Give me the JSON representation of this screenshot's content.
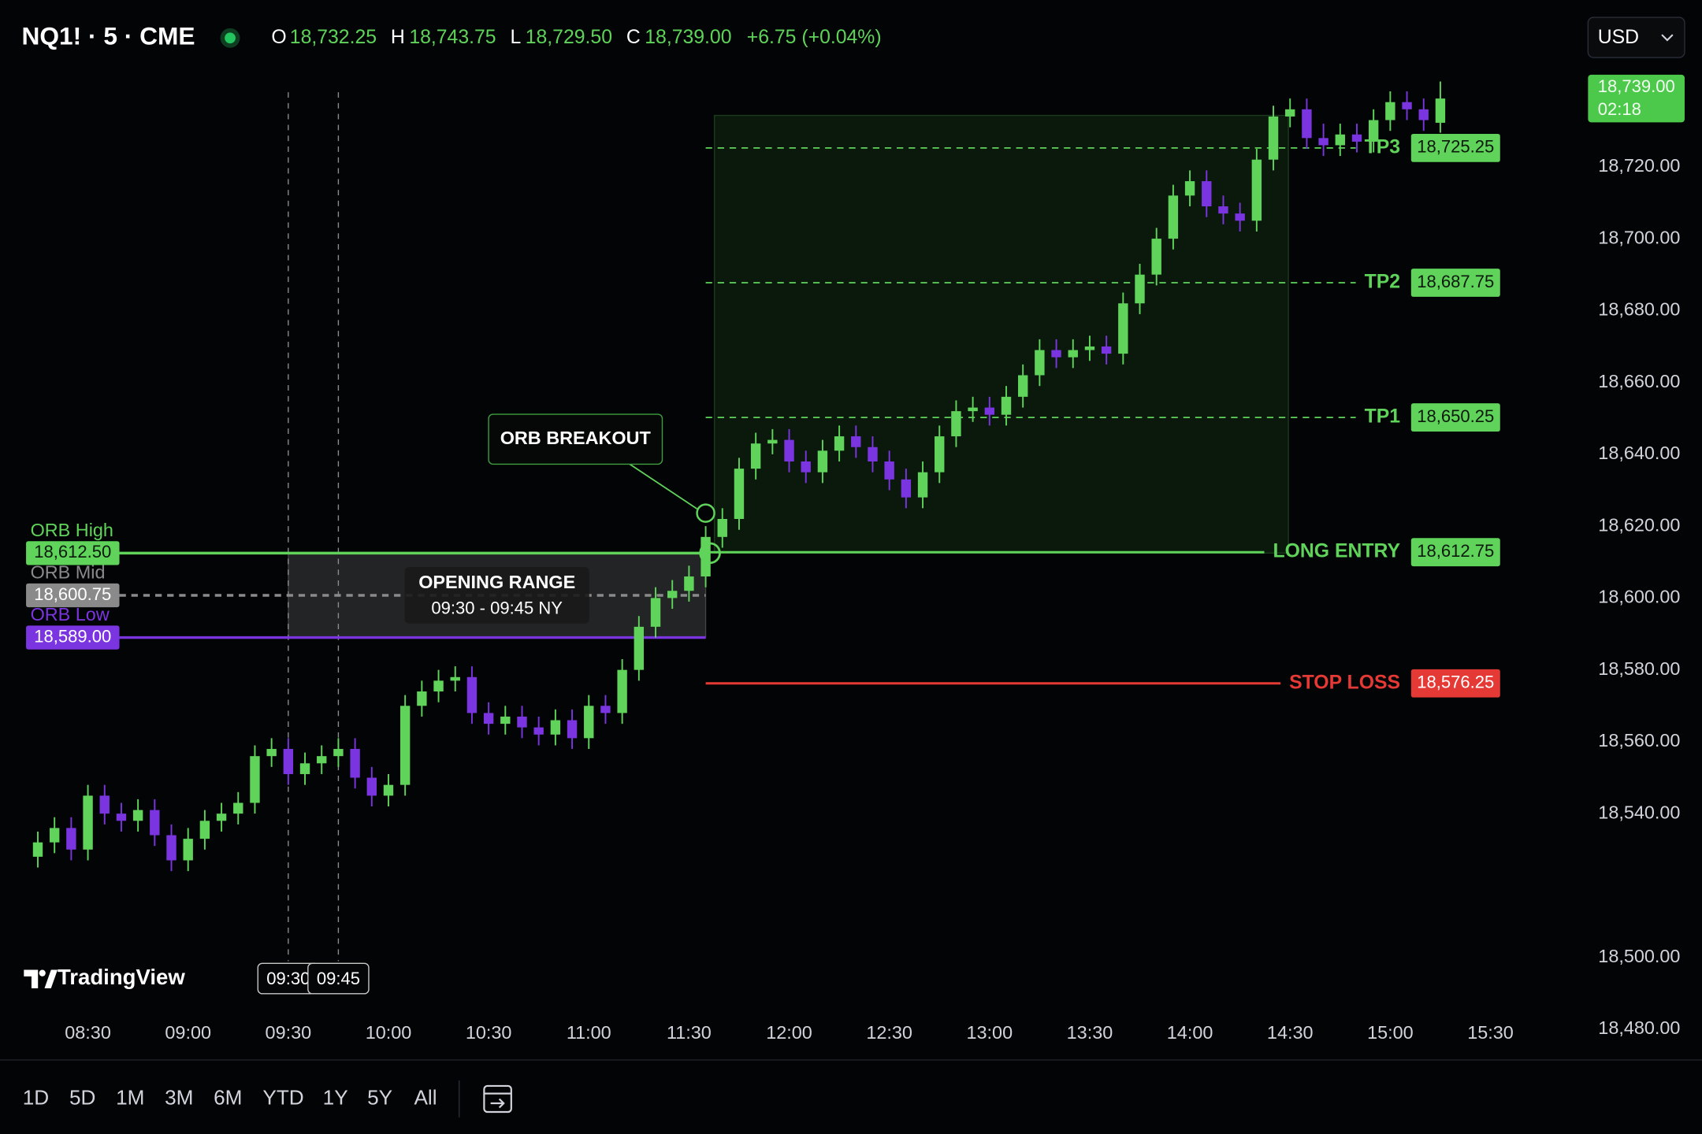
{
  "header": {
    "symbol": "NQ1! · 5 · CME",
    "open_label": "O",
    "open": "18,732.25",
    "high_label": "H",
    "high": "18,743.75",
    "low_label": "L",
    "low": "18,729.50",
    "close_label": "C",
    "close": "18,739.00",
    "change": "+6.75 (+0.04%)",
    "currency": "USD"
  },
  "chart_data": {
    "type": "candlestick",
    "x": [
      "08:15",
      "08:20",
      "08:25",
      "08:30",
      "08:35",
      "08:40",
      "08:45",
      "08:50",
      "08:55",
      "09:00",
      "09:05",
      "09:10",
      "09:15",
      "09:20",
      "09:25",
      "09:30",
      "09:35",
      "09:40",
      "09:45",
      "09:50",
      "09:55",
      "10:00",
      "10:05",
      "10:10",
      "10:15",
      "10:20",
      "10:25",
      "10:30",
      "10:35",
      "10:40",
      "10:45",
      "10:50",
      "10:55",
      "11:00",
      "11:05",
      "11:10",
      "11:15",
      "11:20",
      "11:25",
      "11:30",
      "11:35",
      "11:40",
      "11:45",
      "11:50",
      "11:55",
      "12:00",
      "12:05",
      "12:10",
      "12:15",
      "12:20",
      "12:25",
      "12:30",
      "12:35",
      "12:40",
      "12:45",
      "12:50",
      "12:55",
      "13:00",
      "13:05",
      "13:10",
      "13:15",
      "13:20",
      "13:25",
      "13:30",
      "13:35",
      "13:40",
      "13:45",
      "13:50",
      "13:55",
      "14:00",
      "14:05",
      "14:10",
      "14:15",
      "14:20",
      "14:25",
      "14:30",
      "14:35",
      "14:40",
      "14:45",
      "14:50",
      "14:55",
      "15:00",
      "15:05",
      "15:10",
      "15:15"
    ],
    "open": [
      18528,
      18532,
      18536,
      18530,
      18545,
      18540,
      18538,
      18541,
      18534,
      18527,
      18533,
      18538,
      18540,
      18543,
      18556,
      18558,
      18551,
      18554,
      18556,
      18558,
      18550,
      18545,
      18548,
      18570,
      18574,
      18577,
      18578,
      18568,
      18565,
      18567,
      18564,
      18562,
      18566,
      18561,
      18570,
      18568,
      18580,
      18592,
      18600,
      18602,
      18606,
      18617,
      18622,
      18636,
      18643,
      18644,
      18638,
      18635,
      18641,
      18645,
      18642,
      18638,
      18633,
      18628,
      18635,
      18645,
      18652,
      18653,
      18651,
      18656,
      18662,
      18669,
      18667,
      18669,
      18670,
      18668,
      18682,
      18690,
      18700,
      18712,
      18716,
      18709,
      18707,
      18705,
      18722,
      18734,
      18736,
      18728,
      18726,
      18729,
      18727,
      18733,
      18738,
      18736,
      18732.25
    ],
    "high": [
      18535,
      18539,
      18539,
      18548,
      18548,
      18543,
      18544,
      18544,
      18537,
      18536,
      18541,
      18543,
      18546,
      18559,
      18561,
      18561,
      18557,
      18559,
      18561,
      18561,
      18553,
      18551,
      18573,
      18577,
      18580,
      18581,
      18581,
      18571,
      18570,
      18570,
      18567,
      18569,
      18569,
      18573,
      18573,
      18583,
      18595,
      18603,
      18605,
      18609,
      18620,
      18625,
      18639,
      18646,
      18647,
      18647,
      18641,
      18644,
      18648,
      18648,
      18645,
      18641,
      18636,
      18638,
      18648,
      18655,
      18656,
      18656,
      18659,
      18665,
      18672,
      18672,
      18672,
      18673,
      18673,
      18685,
      18693,
      18703,
      18715,
      18719,
      18719,
      18712,
      18710,
      18725,
      18737,
      18739,
      18739,
      18732,
      18732,
      18732,
      18736,
      18741,
      18741,
      18739,
      18743.75
    ],
    "low": [
      18525,
      18529,
      18527,
      18527,
      18537,
      18535,
      18535,
      18531,
      18524,
      18524,
      18530,
      18535,
      18537,
      18540,
      18553,
      18548,
      18548,
      18551,
      18553,
      18547,
      18542,
      18542,
      18545,
      18567,
      18571,
      18574,
      18565,
      18562,
      18562,
      18561,
      18559,
      18559,
      18558,
      18558,
      18565,
      18565,
      18577,
      18589,
      18597,
      18599,
      18603,
      18614,
      18619,
      18633,
      18640,
      18635,
      18632,
      18632,
      18638,
      18639,
      18635,
      18630,
      18625,
      18625,
      18632,
      18642,
      18649,
      18648,
      18648,
      18653,
      18659,
      18664,
      18664,
      18666,
      18665,
      18665,
      18679,
      18687,
      18697,
      18709,
      18706,
      18704,
      18702,
      18702,
      18719,
      18731,
      18725,
      18723,
      18723,
      18724,
      18724,
      18730,
      18733,
      18730,
      18729.5
    ],
    "close": [
      18532,
      18536,
      18530,
      18545,
      18540,
      18538,
      18541,
      18534,
      18527,
      18533,
      18538,
      18540,
      18543,
      18556,
      18558,
      18551,
      18554,
      18556,
      18558,
      18550,
      18545,
      18548,
      18570,
      18574,
      18577,
      18578,
      18568,
      18565,
      18567,
      18564,
      18562,
      18566,
      18561,
      18570,
      18568,
      18580,
      18592,
      18600,
      18602,
      18606,
      18617,
      18622,
      18636,
      18643,
      18644,
      18638,
      18635,
      18641,
      18645,
      18642,
      18638,
      18633,
      18628,
      18635,
      18645,
      18652,
      18653,
      18651,
      18656,
      18662,
      18669,
      18667,
      18669,
      18670,
      18668,
      18682,
      18690,
      18700,
      18712,
      18716,
      18709,
      18707,
      18705,
      18722,
      18734,
      18736,
      18728,
      18726,
      18729,
      18727,
      18733,
      18738,
      18736,
      18733,
      18739
    ],
    "up_color": "#5fd35a",
    "down_color": "#7b35e0",
    "xlim": [
      "08:04",
      "15:55"
    ],
    "xticks": [
      "08:30",
      "09:00",
      "09:30",
      "10:00",
      "10:30",
      "11:00",
      "11:30",
      "12:00",
      "12:30",
      "13:00",
      "13:30",
      "14:00",
      "14:30",
      "15:00",
      "15:30"
    ],
    "ylim": [
      18475,
      18748
    ],
    "yticks": [
      {
        "value": 18720,
        "label": "18,720.00"
      },
      {
        "value": 18700,
        "label": "18,700.00"
      },
      {
        "value": 18680,
        "label": "18,680.00"
      },
      {
        "value": 18660,
        "label": "18,660.00"
      },
      {
        "value": 18640,
        "label": "18,640.00"
      },
      {
        "value": 18620,
        "label": "18,620.00"
      },
      {
        "value": 18600,
        "label": "18,600.00"
      },
      {
        "value": 18580,
        "label": "18,580.00"
      },
      {
        "value": 18560,
        "label": "18,560.00"
      },
      {
        "value": 18540,
        "label": "18,540.00"
      },
      {
        "value": 18500,
        "label": "18,500.00"
      },
      {
        "value": 18480,
        "label": "18,480.00"
      }
    ],
    "grid": false,
    "last_price": {
      "label": "18,739.00",
      "countdown": "02:18",
      "color": "#4cc94a"
    },
    "markers": [
      "09:30",
      "09:45"
    ],
    "opening_range": {
      "title": "OPENING RANGE",
      "subtitle": "09:30 - 09:45 NY"
    },
    "breakout_label": "ORB BREAKOUT",
    "range_levels": [
      {
        "name": "ORB High",
        "value": 18612.5,
        "value_label": "18,612.50",
        "color": "#5fd35a",
        "text_color": "#0b1a0b",
        "line_style": "solid"
      },
      {
        "name": "ORB Mid",
        "value": 18600.75,
        "value_label": "18,600.75",
        "color": "#8a8a8a",
        "text_color": "#ffffff",
        "line_style": "dashed"
      },
      {
        "name": "ORB Low",
        "value": 18589,
        "value_label": "18,589.00",
        "color": "#7b35e0",
        "text_color": "#ffffff",
        "line_style": "solid"
      }
    ],
    "trade_levels": [
      {
        "name": "TP3",
        "value": 18725.25,
        "value_label": "18,725.25",
        "color": "#5fd35a",
        "text_color": "#0b1a0b",
        "line_style": "dashed"
      },
      {
        "name": "TP2",
        "value": 18687.75,
        "value_label": "18,687.75",
        "color": "#5fd35a",
        "text_color": "#0b1a0b",
        "line_style": "dashed"
      },
      {
        "name": "TP1",
        "value": 18650.25,
        "value_label": "18,650.25",
        "color": "#5fd35a",
        "text_color": "#0b1a0b",
        "line_style": "dashed"
      },
      {
        "name": "LONG ENTRY",
        "value": 18612.75,
        "value_label": "18,612.75",
        "color": "#5fd35a",
        "text_color": "#0b1a0b",
        "line_style": "solid"
      },
      {
        "name": "STOP LOSS",
        "value": 18576.25,
        "value_label": "18,576.25",
        "color": "#e53935",
        "text_color": "#ffffff",
        "line_style": "solid"
      }
    ],
    "logo": "TradingView"
  },
  "range_buttons": [
    "1D",
    "5D",
    "1M",
    "3M",
    "6M",
    "YTD",
    "1Y",
    "5Y",
    "All"
  ]
}
